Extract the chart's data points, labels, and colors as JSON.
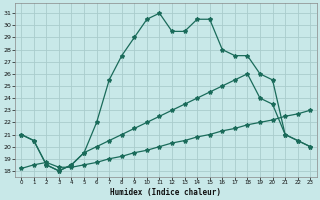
{
  "xlabel": "Humidex (Indice chaleur)",
  "background_color": "#c8e8e8",
  "grid_color": "#aacccc",
  "line_color": "#1a6b5a",
  "xlim": [
    -0.5,
    23.5
  ],
  "ylim": [
    17.5,
    31.8
  ],
  "xticks": [
    0,
    1,
    2,
    3,
    4,
    5,
    6,
    7,
    8,
    9,
    10,
    11,
    12,
    13,
    14,
    15,
    16,
    17,
    18,
    19,
    20,
    21,
    22,
    23
  ],
  "yticks": [
    18,
    19,
    20,
    21,
    22,
    23,
    24,
    25,
    26,
    27,
    28,
    29,
    30,
    31
  ],
  "series": [
    {
      "x": [
        0,
        1,
        2,
        3,
        4,
        5,
        6,
        7,
        8,
        9,
        10,
        11,
        12,
        13,
        14,
        15,
        16,
        17,
        18,
        19,
        20,
        21,
        22,
        23
      ],
      "y": [
        18.2,
        18.5,
        18.7,
        18.3,
        18.3,
        18.5,
        18.7,
        19.0,
        19.2,
        19.5,
        19.7,
        20.0,
        20.3,
        20.5,
        20.8,
        21.0,
        21.3,
        21.5,
        21.8,
        22.0,
        22.2,
        22.5,
        22.7,
        23.0
      ]
    },
    {
      "x": [
        0,
        1,
        2,
        3,
        4,
        5,
        6,
        7,
        8,
        9,
        10,
        11,
        12,
        13,
        14,
        15,
        16,
        17,
        18,
        19,
        20,
        21,
        22,
        23
      ],
      "y": [
        21.0,
        20.5,
        18.5,
        18.0,
        18.5,
        19.5,
        22.0,
        25.5,
        27.5,
        29.0,
        30.5,
        31.0,
        29.5,
        29.5,
        30.5,
        30.5,
        28.0,
        27.5,
        27.5,
        26.0,
        25.5,
        21.0,
        20.5,
        20.0
      ]
    },
    {
      "x": [
        0,
        1,
        2,
        3,
        4,
        5,
        6,
        7,
        8,
        9,
        10,
        11,
        12,
        13,
        14,
        15,
        16,
        17,
        18,
        19,
        20,
        21,
        22,
        23
      ],
      "y": [
        21.0,
        20.5,
        18.5,
        18.0,
        18.5,
        19.5,
        20.0,
        20.5,
        21.0,
        21.5,
        22.0,
        22.5,
        23.0,
        23.5,
        24.0,
        24.5,
        25.0,
        25.5,
        26.0,
        24.0,
        23.5,
        21.0,
        20.5,
        20.0
      ]
    }
  ]
}
